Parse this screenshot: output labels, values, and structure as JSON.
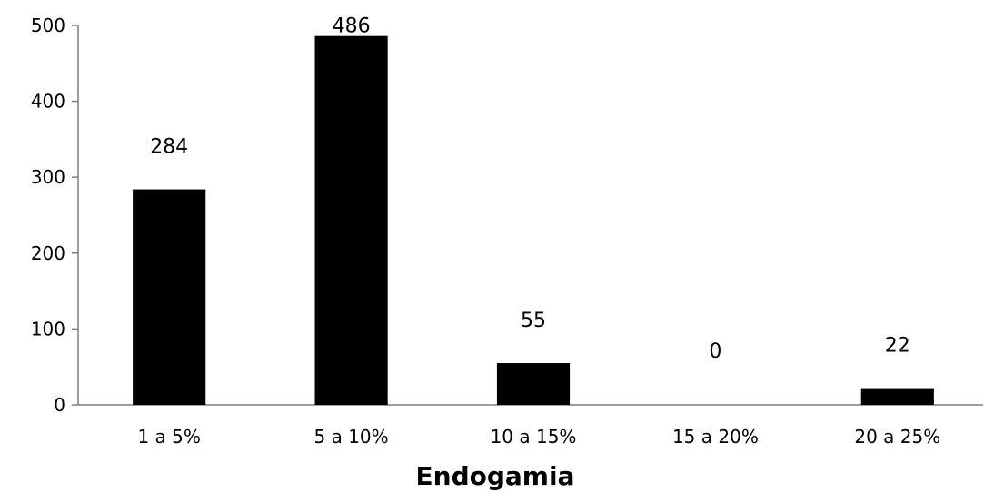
{
  "chart_data": {
    "type": "bar",
    "categories": [
      "1 a 5%",
      "5 a 10%",
      "10 a 15%",
      "15 a 20%",
      "20 a 25%"
    ],
    "values": [
      284,
      486,
      55,
      0,
      22
    ],
    "data_labels": [
      "284",
      "486",
      "55",
      "0",
      "22"
    ],
    "xlabel": "Endogamia",
    "ylabel": "",
    "ylim": [
      0,
      500
    ],
    "yticks": [
      0,
      100,
      200,
      300,
      400,
      500
    ],
    "bar_color": "#000000",
    "grid": false,
    "legend": "none"
  }
}
